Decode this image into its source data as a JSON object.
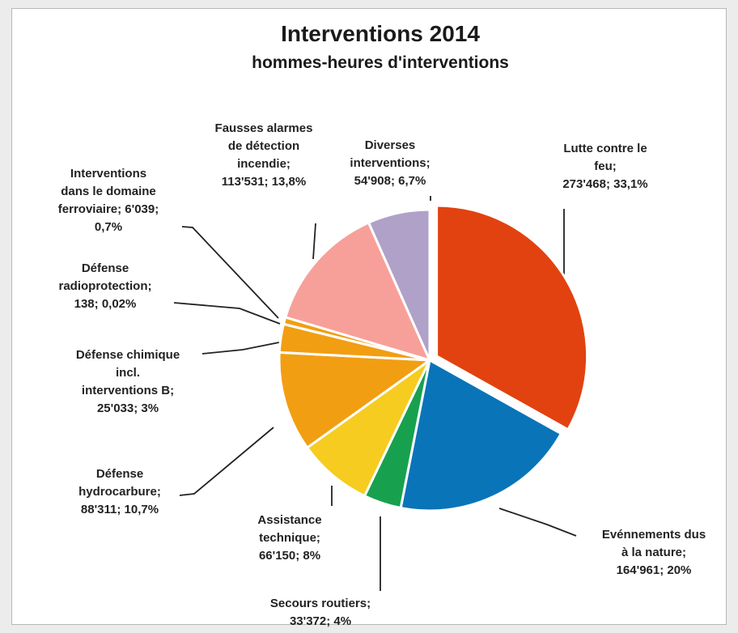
{
  "chart_data": {
    "type": "pie",
    "title": "Interventions 2014",
    "subtitle": "hommes-heures d'interventions",
    "slices": [
      {
        "lines": [
          "Lutte contre le",
          "feu;",
          "273'468; 33,1%"
        ],
        "value": 273468,
        "percent": 33.1,
        "color": "#e2420f"
      },
      {
        "lines": [
          "Evénnements dus",
          "à la nature;",
          "164'961; 20%"
        ],
        "value": 164961,
        "percent": 20,
        "color": "#0a74b8"
      },
      {
        "lines": [
          "Secours routiers;",
          "33'372; 4%"
        ],
        "value": 33372,
        "percent": 4,
        "color": "#17a14f"
      },
      {
        "lines": [
          "Assistance",
          "technique;",
          "66'150; 8%"
        ],
        "value": 66150,
        "percent": 8,
        "color": "#f6cc20"
      },
      {
        "lines": [
          "Défense",
          "hydrocarbure;",
          "88'311; 10,7%"
        ],
        "value": 88311,
        "percent": 10.7,
        "color": "#f29e12"
      },
      {
        "lines": [
          "Défense chimique",
          "incl.",
          "interventions B;",
          "25'033; 3%"
        ],
        "value": 25033,
        "percent": 3,
        "color": "#f29e12"
      },
      {
        "lines": [
          "Défense",
          "radioprotection;",
          "138; 0,02%"
        ],
        "value": 138,
        "percent": 0.02,
        "color": "#f29e12"
      },
      {
        "lines": [
          "Interventions",
          "dans le domaine",
          "ferroviaire; 6'039;",
          "0,7%"
        ],
        "value": 6039,
        "percent": 0.7,
        "color": "#f29e12"
      },
      {
        "lines": [
          "Fausses alarmes",
          "de détection",
          "incendie;",
          "113'531; 13,8%"
        ],
        "value": 113531,
        "percent": 13.8,
        "color": "#f7a09a"
      },
      {
        "lines": [
          "Diverses",
          "interventions;",
          "54'908; 6,7%"
        ],
        "value": 54908,
        "percent": 6.7,
        "color": "#b0a1c8"
      }
    ]
  }
}
